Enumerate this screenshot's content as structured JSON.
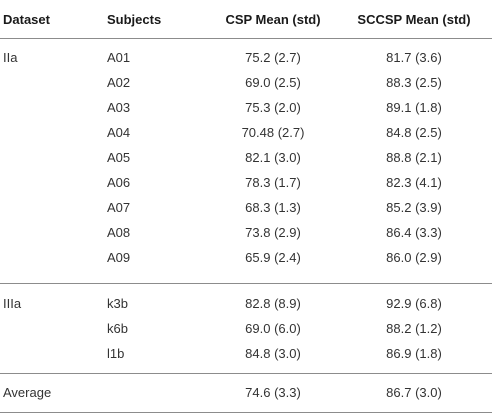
{
  "table": {
    "headers": {
      "dataset": "Dataset",
      "subjects": "Subjects",
      "csp": "CSP Mean (std)",
      "sccsp": "SCCSP Mean (std)"
    },
    "groups": [
      {
        "dataset": "IIa",
        "rows": [
          {
            "subject": "A01",
            "csp": "75.2 (2.7)",
            "sccsp": "81.7 (3.6)"
          },
          {
            "subject": "A02",
            "csp": "69.0 (2.5)",
            "sccsp": "88.3 (2.5)"
          },
          {
            "subject": "A03",
            "csp": "75.3 (2.0)",
            "sccsp": "89.1 (1.8)"
          },
          {
            "subject": "A04",
            "csp": "70.48 (2.7)",
            "sccsp": "84.8 (2.5)"
          },
          {
            "subject": "A05",
            "csp": "82.1 (3.0)",
            "sccsp": "88.8 (2.1)"
          },
          {
            "subject": "A06",
            "csp": "78.3 (1.7)",
            "sccsp": "82.3 (4.1)"
          },
          {
            "subject": "A07",
            "csp": "68.3 (1.3)",
            "sccsp": "85.2 (3.9)"
          },
          {
            "subject": "A08",
            "csp": "73.8 (2.9)",
            "sccsp": "86.4 (3.3)"
          },
          {
            "subject": "A09",
            "csp": "65.9 (2.4)",
            "sccsp": "86.0 (2.9)"
          }
        ]
      },
      {
        "dataset": "IIIa",
        "rows": [
          {
            "subject": "k3b",
            "csp": "82.8 (8.9)",
            "sccsp": "92.9 (6.8)"
          },
          {
            "subject": "k6b",
            "csp": "69.0 (6.0)",
            "sccsp": "88.2 (1.2)"
          },
          {
            "subject": "l1b",
            "csp": "84.8 (3.0)",
            "sccsp": "86.9 (1.8)"
          }
        ]
      }
    ],
    "average": {
      "label": "Average",
      "csp": "74.6 (3.3)",
      "sccsp": "86.7 (3.0)"
    }
  }
}
